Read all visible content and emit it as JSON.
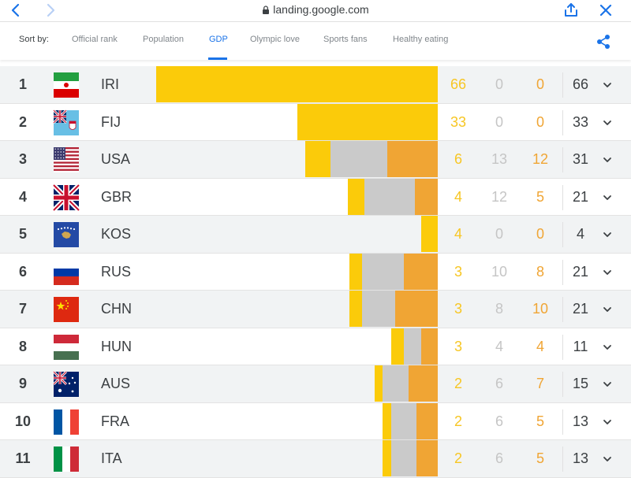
{
  "browser": {
    "url": "landing.google.com"
  },
  "sort": {
    "label": "Sort by:",
    "tabs": [
      "Official rank",
      "Population",
      "GDP",
      "Olympic love",
      "Sports fans",
      "Healthy eating"
    ],
    "active_tab": "GDP"
  },
  "colors": {
    "gold": "#fbcb0a",
    "silver": "#cacaca",
    "bronze": "#f0a534",
    "accent": "#1a73e8"
  },
  "rows": [
    {
      "rank": "1",
      "code": "IRI",
      "flag": "iran-flag",
      "gold": 66,
      "silver": 0,
      "bronze": 0,
      "total": 66,
      "gold_share": 1.0,
      "silver_share": 0.0,
      "bronze_share": 0.0
    },
    {
      "rank": "2",
      "code": "FIJ",
      "flag": "fiji-flag",
      "gold": 33,
      "silver": 0,
      "bronze": 0,
      "total": 33,
      "gold_share": 0.5,
      "silver_share": 0.0,
      "bronze_share": 0.0
    },
    {
      "rank": "3",
      "code": "USA",
      "flag": "usa-flag",
      "gold": 6,
      "silver": 13,
      "bronze": 12,
      "total": 31,
      "gold_share": 0.09,
      "silver_share": 0.2,
      "bronze_share": 0.18
    },
    {
      "rank": "4",
      "code": "GBR",
      "flag": "uk-flag",
      "gold": 4,
      "silver": 12,
      "bronze": 5,
      "total": 21,
      "gold_share": 0.06,
      "silver_share": 0.18,
      "bronze_share": 0.08
    },
    {
      "rank": "5",
      "code": "KOS",
      "flag": "kosovo-flag",
      "gold": 4,
      "silver": 0,
      "bronze": 0,
      "total": 4,
      "gold_share": 0.06,
      "silver_share": 0.0,
      "bronze_share": 0.0
    },
    {
      "rank": "6",
      "code": "RUS",
      "flag": "russia-flag",
      "gold": 3,
      "silver": 10,
      "bronze": 8,
      "total": 21,
      "gold_share": 0.045,
      "silver_share": 0.15,
      "bronze_share": 0.12
    },
    {
      "rank": "7",
      "code": "CHN",
      "flag": "china-flag",
      "gold": 3,
      "silver": 8,
      "bronze": 10,
      "total": 21,
      "gold_share": 0.045,
      "silver_share": 0.12,
      "bronze_share": 0.15
    },
    {
      "rank": "8",
      "code": "HUN",
      "flag": "hungary-flag",
      "gold": 3,
      "silver": 4,
      "bronze": 4,
      "total": 11,
      "gold_share": 0.045,
      "silver_share": 0.06,
      "bronze_share": 0.06
    },
    {
      "rank": "9",
      "code": "AUS",
      "flag": "australia-flag",
      "gold": 2,
      "silver": 6,
      "bronze": 7,
      "total": 15,
      "gold_share": 0.03,
      "silver_share": 0.09,
      "bronze_share": 0.105
    },
    {
      "rank": "10",
      "code": "FRA",
      "flag": "france-flag",
      "gold": 2,
      "silver": 6,
      "bronze": 5,
      "total": 13,
      "gold_share": 0.03,
      "silver_share": 0.09,
      "bronze_share": 0.075
    },
    {
      "rank": "11",
      "code": "ITA",
      "flag": "italy-flag",
      "gold": 2,
      "silver": 6,
      "bronze": 5,
      "total": 13,
      "gold_share": 0.03,
      "silver_share": 0.09,
      "bronze_share": 0.075
    }
  ]
}
